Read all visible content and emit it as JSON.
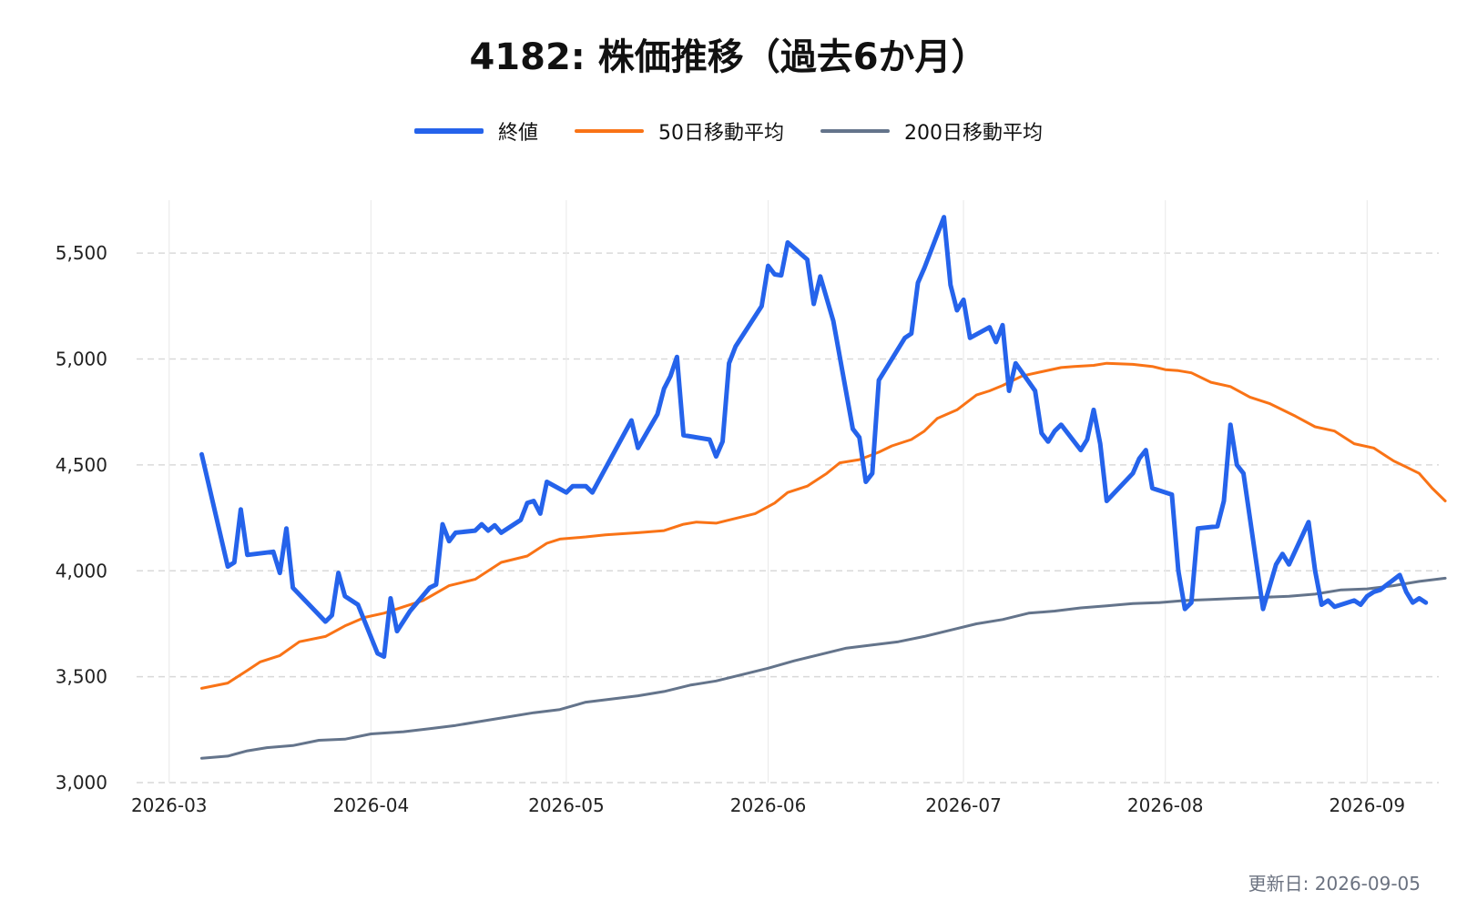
{
  "chart_data": {
    "type": "line",
    "title": "4182: 株価推移（過去6か月）",
    "xlabel": "",
    "ylabel": "",
    "ylim": [
      3000,
      5750
    ],
    "yticks": [
      3000,
      3500,
      4000,
      4500,
      5000,
      5500
    ],
    "ytick_labels": [
      "3,000",
      "3,500",
      "4,000",
      "4,500",
      "5,000",
      "5,500"
    ],
    "xlim": [
      "2026-02-24",
      "2026-09-12"
    ],
    "xticks": [
      "2026-03-01",
      "2026-04-01",
      "2026-05-01",
      "2026-06-01",
      "2026-07-01",
      "2026-08-01",
      "2026-09-01"
    ],
    "xtick_labels": [
      "2026-03",
      "2026-04",
      "2026-05",
      "2026-06",
      "2026-07",
      "2026-08",
      "2026-09"
    ],
    "grid": true,
    "legend": "top-center",
    "series": [
      {
        "name": "終値",
        "color": "#2563eb",
        "points": [
          [
            "2026-03-06",
            4550
          ],
          [
            "2026-03-10",
            4020
          ],
          [
            "2026-03-11",
            4040
          ],
          [
            "2026-03-12",
            4290
          ],
          [
            "2026-03-13",
            4075
          ],
          [
            "2026-03-17",
            4090
          ],
          [
            "2026-03-18",
            3990
          ],
          [
            "2026-03-19",
            4200
          ],
          [
            "2026-03-20",
            3920
          ],
          [
            "2026-03-25",
            3760
          ],
          [
            "2026-03-26",
            3790
          ],
          [
            "2026-03-27",
            3990
          ],
          [
            "2026-03-28",
            3880
          ],
          [
            "2026-03-30",
            3840
          ],
          [
            "2026-04-02",
            3610
          ],
          [
            "2026-04-03",
            3595
          ],
          [
            "2026-04-04",
            3870
          ],
          [
            "2026-04-05",
            3715
          ],
          [
            "2026-04-07",
            3810
          ],
          [
            "2026-04-10",
            3920
          ],
          [
            "2026-04-11",
            3935
          ],
          [
            "2026-04-12",
            4220
          ],
          [
            "2026-04-13",
            4140
          ],
          [
            "2026-04-14",
            4180
          ],
          [
            "2026-04-17",
            4190
          ],
          [
            "2026-04-18",
            4220
          ],
          [
            "2026-04-19",
            4190
          ],
          [
            "2026-04-20",
            4215
          ],
          [
            "2026-04-21",
            4180
          ],
          [
            "2026-04-24",
            4240
          ],
          [
            "2026-04-25",
            4320
          ],
          [
            "2026-04-26",
            4330
          ],
          [
            "2026-04-27",
            4270
          ],
          [
            "2026-04-28",
            4420
          ],
          [
            "2026-05-01",
            4370
          ],
          [
            "2026-05-02",
            4400
          ],
          [
            "2026-05-04",
            4400
          ],
          [
            "2026-05-05",
            4370
          ],
          [
            "2026-05-11",
            4710
          ],
          [
            "2026-05-12",
            4580
          ],
          [
            "2026-05-15",
            4740
          ],
          [
            "2026-05-16",
            4860
          ],
          [
            "2026-05-17",
            4920
          ],
          [
            "2026-05-18",
            5010
          ],
          [
            "2026-05-19",
            4640
          ],
          [
            "2026-05-23",
            4620
          ],
          [
            "2026-05-24",
            4540
          ],
          [
            "2026-05-25",
            4610
          ],
          [
            "2026-05-26",
            4980
          ],
          [
            "2026-05-27",
            5060
          ],
          [
            "2026-05-31",
            5250
          ],
          [
            "2026-06-01",
            5440
          ],
          [
            "2026-06-02",
            5400
          ],
          [
            "2026-06-03",
            5395
          ],
          [
            "2026-06-04",
            5550
          ],
          [
            "2026-06-07",
            5470
          ],
          [
            "2026-06-08",
            5260
          ],
          [
            "2026-06-09",
            5390
          ],
          [
            "2026-06-11",
            5180
          ],
          [
            "2026-06-14",
            4670
          ],
          [
            "2026-06-15",
            4630
          ],
          [
            "2026-06-16",
            4420
          ],
          [
            "2026-06-17",
            4460
          ],
          [
            "2026-06-18",
            4900
          ],
          [
            "2026-06-22",
            5100
          ],
          [
            "2026-06-23",
            5120
          ],
          [
            "2026-06-24",
            5360
          ],
          [
            "2026-06-25",
            5430
          ],
          [
            "2026-06-28",
            5670
          ],
          [
            "2026-06-29",
            5350
          ],
          [
            "2026-06-30",
            5230
          ],
          [
            "2026-07-01",
            5280
          ],
          [
            "2026-07-02",
            5100
          ],
          [
            "2026-07-05",
            5150
          ],
          [
            "2026-07-06",
            5080
          ],
          [
            "2026-07-07",
            5160
          ],
          [
            "2026-07-08",
            4850
          ],
          [
            "2026-07-09",
            4980
          ],
          [
            "2026-07-12",
            4850
          ],
          [
            "2026-07-13",
            4650
          ],
          [
            "2026-07-14",
            4610
          ],
          [
            "2026-07-15",
            4660
          ],
          [
            "2026-07-16",
            4690
          ],
          [
            "2026-07-19",
            4570
          ],
          [
            "2026-07-20",
            4620
          ],
          [
            "2026-07-21",
            4760
          ],
          [
            "2026-07-22",
            4600
          ],
          [
            "2026-07-23",
            4330
          ],
          [
            "2026-07-27",
            4460
          ],
          [
            "2026-07-28",
            4530
          ],
          [
            "2026-07-29",
            4570
          ],
          [
            "2026-07-30",
            4390
          ],
          [
            "2026-08-02",
            4360
          ],
          [
            "2026-08-03",
            4000
          ],
          [
            "2026-08-04",
            3820
          ],
          [
            "2026-08-05",
            3850
          ],
          [
            "2026-08-06",
            4200
          ],
          [
            "2026-08-09",
            4210
          ],
          [
            "2026-08-10",
            4330
          ],
          [
            "2026-08-11",
            4690
          ],
          [
            "2026-08-12",
            4500
          ],
          [
            "2026-08-13",
            4460
          ],
          [
            "2026-08-16",
            3820
          ],
          [
            "2026-08-18",
            4030
          ],
          [
            "2026-08-19",
            4080
          ],
          [
            "2026-08-20",
            4030
          ],
          [
            "2026-08-23",
            4230
          ],
          [
            "2026-08-24",
            4000
          ],
          [
            "2026-08-25",
            3840
          ],
          [
            "2026-08-26",
            3860
          ],
          [
            "2026-08-27",
            3830
          ],
          [
            "2026-08-30",
            3860
          ],
          [
            "2026-08-31",
            3840
          ],
          [
            "2026-09-01",
            3880
          ],
          [
            "2026-09-02",
            3900
          ],
          [
            "2026-09-03",
            3910
          ],
          [
            "2026-09-06",
            3980
          ],
          [
            "2026-09-07",
            3900
          ],
          [
            "2026-09-08",
            3850
          ],
          [
            "2026-09-09",
            3870
          ],
          [
            "2026-09-10",
            3850
          ]
        ]
      },
      {
        "name": "50日移動平均",
        "color": "#f97316",
        "points": [
          [
            "2026-03-06",
            3445
          ],
          [
            "2026-03-10",
            3470
          ],
          [
            "2026-03-13",
            3530
          ],
          [
            "2026-03-15",
            3570
          ],
          [
            "2026-03-18",
            3600
          ],
          [
            "2026-03-21",
            3665
          ],
          [
            "2026-03-25",
            3690
          ],
          [
            "2026-03-28",
            3740
          ],
          [
            "2026-03-31",
            3780
          ],
          [
            "2026-04-03",
            3800
          ],
          [
            "2026-04-06",
            3830
          ],
          [
            "2026-04-09",
            3860
          ],
          [
            "2026-04-13",
            3930
          ],
          [
            "2026-04-17",
            3960
          ],
          [
            "2026-04-21",
            4040
          ],
          [
            "2026-04-25",
            4070
          ],
          [
            "2026-04-28",
            4130
          ],
          [
            "2026-04-30",
            4150
          ],
          [
            "2026-05-04",
            4160
          ],
          [
            "2026-05-07",
            4170
          ],
          [
            "2026-05-12",
            4180
          ],
          [
            "2026-05-16",
            4190
          ],
          [
            "2026-05-19",
            4220
          ],
          [
            "2026-05-21",
            4230
          ],
          [
            "2026-05-24",
            4225
          ],
          [
            "2026-05-26",
            4240
          ],
          [
            "2026-05-30",
            4270
          ],
          [
            "2026-06-02",
            4320
          ],
          [
            "2026-06-04",
            4370
          ],
          [
            "2026-06-07",
            4400
          ],
          [
            "2026-06-10",
            4460
          ],
          [
            "2026-06-12",
            4510
          ],
          [
            "2026-06-15",
            4525
          ],
          [
            "2026-06-18",
            4560
          ],
          [
            "2026-06-20",
            4590
          ],
          [
            "2026-06-23",
            4620
          ],
          [
            "2026-06-25",
            4660
          ],
          [
            "2026-06-27",
            4720
          ],
          [
            "2026-06-30",
            4760
          ],
          [
            "2026-07-03",
            4830
          ],
          [
            "2026-07-05",
            4850
          ],
          [
            "2026-07-07",
            4875
          ],
          [
            "2026-07-10",
            4920
          ],
          [
            "2026-07-13",
            4940
          ],
          [
            "2026-07-16",
            4960
          ],
          [
            "2026-07-18",
            4965
          ],
          [
            "2026-07-21",
            4970
          ],
          [
            "2026-07-23",
            4980
          ],
          [
            "2026-07-27",
            4975
          ],
          [
            "2026-07-30",
            4965
          ],
          [
            "2026-08-01",
            4950
          ],
          [
            "2026-08-03",
            4945
          ],
          [
            "2026-08-05",
            4935
          ],
          [
            "2026-08-08",
            4890
          ],
          [
            "2026-08-11",
            4870
          ],
          [
            "2026-08-14",
            4820
          ],
          [
            "2026-08-17",
            4790
          ],
          [
            "2026-08-19",
            4760
          ],
          [
            "2026-08-21",
            4730
          ],
          [
            "2026-08-24",
            4680
          ],
          [
            "2026-08-27",
            4660
          ],
          [
            "2026-08-30",
            4600
          ],
          [
            "2026-09-02",
            4580
          ],
          [
            "2026-09-05",
            4520
          ],
          [
            "2026-09-07",
            4490
          ],
          [
            "2026-09-09",
            4460
          ],
          [
            "2026-09-11",
            4390
          ],
          [
            "2026-09-13",
            4330
          ]
        ]
      },
      {
        "name": "200日移動平均",
        "color": "#64748b",
        "points": [
          [
            "2026-03-06",
            3115
          ],
          [
            "2026-03-10",
            3125
          ],
          [
            "2026-03-13",
            3150
          ],
          [
            "2026-03-16",
            3165
          ],
          [
            "2026-03-20",
            3175
          ],
          [
            "2026-03-24",
            3200
          ],
          [
            "2026-03-28",
            3205
          ],
          [
            "2026-04-01",
            3230
          ],
          [
            "2026-04-06",
            3240
          ],
          [
            "2026-04-10",
            3255
          ],
          [
            "2026-04-14",
            3270
          ],
          [
            "2026-04-18",
            3290
          ],
          [
            "2026-04-22",
            3310
          ],
          [
            "2026-04-26",
            3330
          ],
          [
            "2026-04-30",
            3345
          ],
          [
            "2026-05-04",
            3380
          ],
          [
            "2026-05-08",
            3395
          ],
          [
            "2026-05-12",
            3410
          ],
          [
            "2026-05-16",
            3430
          ],
          [
            "2026-05-20",
            3460
          ],
          [
            "2026-05-24",
            3480
          ],
          [
            "2026-05-28",
            3510
          ],
          [
            "2026-06-01",
            3540
          ],
          [
            "2026-06-05",
            3575
          ],
          [
            "2026-06-09",
            3605
          ],
          [
            "2026-06-13",
            3635
          ],
          [
            "2026-06-17",
            3650
          ],
          [
            "2026-06-21",
            3665
          ],
          [
            "2026-06-25",
            3690
          ],
          [
            "2026-06-29",
            3720
          ],
          [
            "2026-07-03",
            3750
          ],
          [
            "2026-07-07",
            3770
          ],
          [
            "2026-07-11",
            3800
          ],
          [
            "2026-07-15",
            3810
          ],
          [
            "2026-07-19",
            3825
          ],
          [
            "2026-07-23",
            3835
          ],
          [
            "2026-07-27",
            3845
          ],
          [
            "2026-07-31",
            3850
          ],
          [
            "2026-08-04",
            3860
          ],
          [
            "2026-08-08",
            3865
          ],
          [
            "2026-08-12",
            3870
          ],
          [
            "2026-08-16",
            3875
          ],
          [
            "2026-08-20",
            3880
          ],
          [
            "2026-08-24",
            3890
          ],
          [
            "2026-08-28",
            3910
          ],
          [
            "2026-09-01",
            3915
          ],
          [
            "2026-09-05",
            3930
          ],
          [
            "2026-09-09",
            3950
          ],
          [
            "2026-09-13",
            3965
          ]
        ]
      }
    ]
  },
  "footer": {
    "updated": "更新日: 2026-09-05"
  }
}
